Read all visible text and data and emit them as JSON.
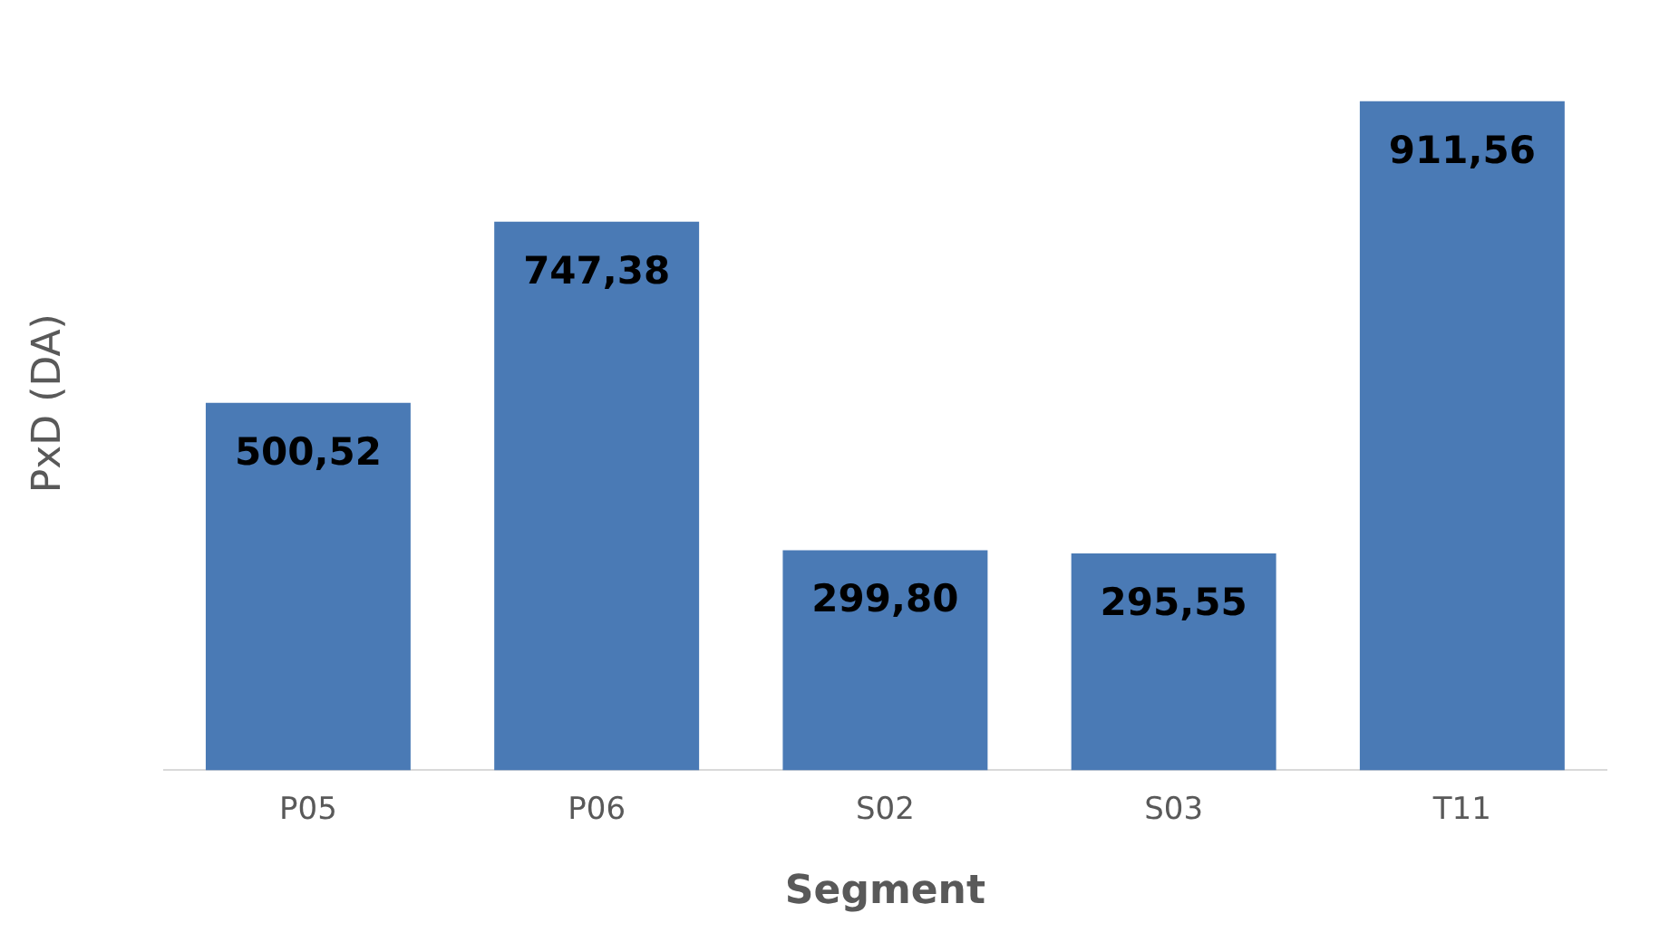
{
  "chart_data": {
    "type": "bar",
    "xlabel": "Segment",
    "ylabel": "PxD (DA)",
    "categories": [
      "P05",
      "P06",
      "S02",
      "S03",
      "T11"
    ],
    "values": [
      500.52,
      747.38,
      299.8,
      295.55,
      911.56
    ],
    "value_labels": [
      "500,52",
      "747,38",
      "299,80",
      "295,55",
      "911,56"
    ],
    "color": "#4a7ab5",
    "tick_labels": "x",
    "grid": false,
    "legend": false
  }
}
